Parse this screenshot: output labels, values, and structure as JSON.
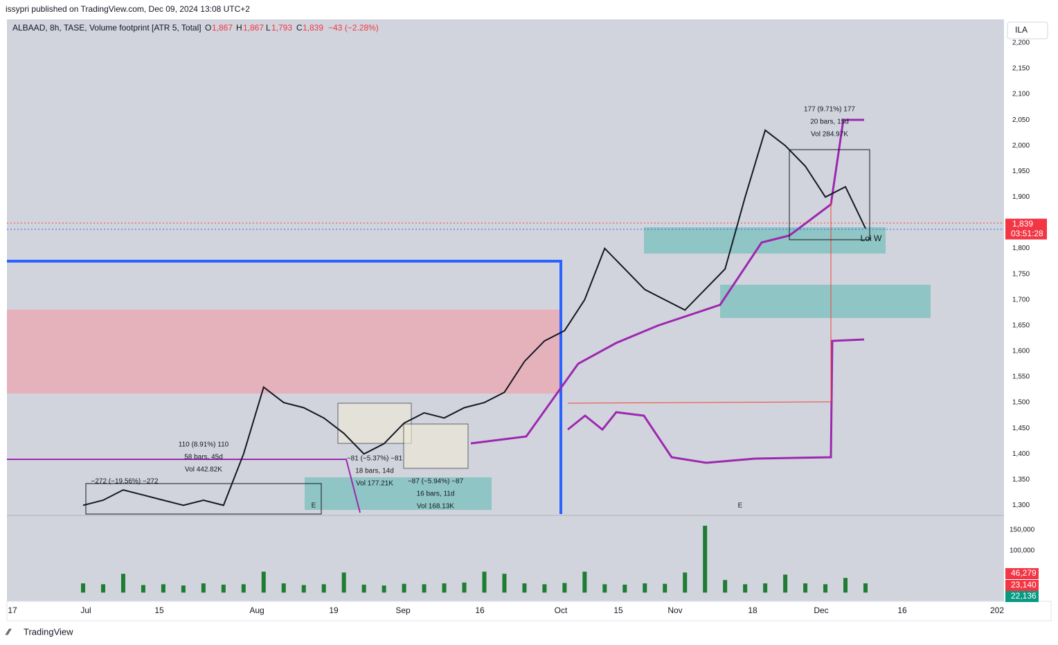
{
  "header": {
    "published": "issypri published on TradingView.com, Dec 09, 2024 13:08 UTC+2",
    "symbol": "ALBAAD, 8h, TASE, Volume footprint [ATR 5, Total]",
    "o_label": "O",
    "o": "1,867",
    "h_label": "H",
    "h": "1,867",
    "l_label": "L",
    "l": "1,793",
    "c_label": "C",
    "c": "1,839",
    "change": "−43 (−2.28%)"
  },
  "currency": "ILA",
  "footer": "TradingView",
  "chart_data": {
    "type": "line",
    "color": "#131722",
    "ylim": [
      1283,
      2243
    ],
    "yticks": [
      {
        "value": 1300,
        "label": "1,300"
      },
      {
        "value": 1350,
        "label": "1,350"
      },
      {
        "value": 1400,
        "label": "1,400"
      },
      {
        "value": 1450,
        "label": "1,450"
      },
      {
        "value": 1500,
        "label": "1,500"
      },
      {
        "value": 1550,
        "label": "1,550"
      },
      {
        "value": 1600,
        "label": "1,600"
      },
      {
        "value": 1650,
        "label": "1,650"
      },
      {
        "value": 1700,
        "label": "1,700"
      },
      {
        "value": 1750,
        "label": "1,750"
      },
      {
        "value": 1800,
        "label": "1,800"
      },
      {
        "value": 1850,
        "label": "1,850"
      },
      {
        "value": 1900,
        "label": "1,900"
      },
      {
        "value": 1950,
        "label": "1,950"
      },
      {
        "value": 2000,
        "label": "2,000"
      },
      {
        "value": 2050,
        "label": "2,050"
      },
      {
        "value": 2100,
        "label": "2,100"
      },
      {
        "value": 2150,
        "label": "2,150"
      },
      {
        "value": 2200,
        "label": "2,200"
      }
    ],
    "values": [
      1300,
      1310,
      1330,
      1320,
      1310,
      1300,
      1310,
      1300,
      1400,
      1530,
      1500,
      1490,
      1470,
      1440,
      1400,
      1420,
      1460,
      1480,
      1470,
      1490,
      1500,
      1520,
      1580,
      1620,
      1640,
      1700,
      1800,
      1760,
      1720,
      1700,
      1680,
      1720,
      1760,
      1900,
      2030,
      2000,
      1960,
      1900,
      1920,
      1839
    ],
    "volume": [
      22000,
      20000,
      45000,
      18000,
      20000,
      17000,
      22000,
      19000,
      20000,
      50000,
      22000,
      18000,
      20000,
      48000,
      19000,
      17000,
      21000,
      20000,
      22000,
      24000,
      50000,
      45000,
      22000,
      20000,
      23000,
      50000,
      20000,
      19000,
      22000,
      21000,
      48000,
      160000,
      30000,
      20000,
      22000,
      43000,
      22000,
      20000,
      35000,
      22136
    ],
    "volume_color": "#1e7d32",
    "y2lim": [
      -21000,
      178000
    ],
    "y2ticks": [
      {
        "value": 100000,
        "label": "100,000"
      },
      {
        "value": 150000,
        "label": "150,000"
      }
    ],
    "last_price": {
      "value": 1839,
      "label": "1,839"
    },
    "countdown": "03:51:28",
    "volume_labels": [
      "46,279",
      "23,140",
      "22,136"
    ],
    "x_labels": [
      "17",
      "Jul",
      "15",
      "Aug",
      "19",
      "Sep",
      "16",
      "Oct",
      "15",
      "Nov",
      "18",
      "Dec",
      "16",
      "202"
    ],
    "annotations": [
      "177 (9.71%) 177",
      "20 bars, 15d",
      "Vol 284.97K",
      "110 (8.91%) 110",
      "58 bars, 45d",
      "Vol 442.82K",
      "−81 (−5.37%) −81",
      "18 bars, 14d",
      "Vol 177.21K",
      "−87 (−5.94%) −87",
      "16 bars, 11d",
      "Vol 168.13K",
      "−272 (−19.56%) −272",
      "Loi W",
      "E",
      "E"
    ]
  }
}
